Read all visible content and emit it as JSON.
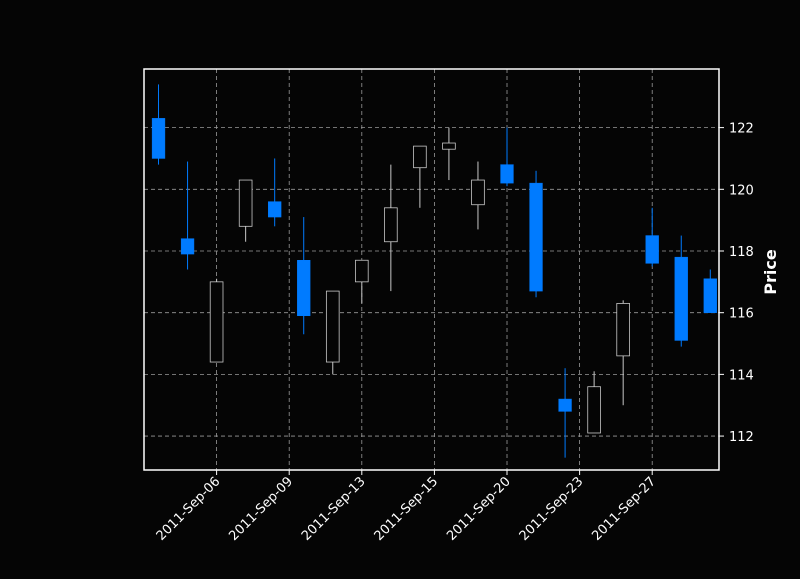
{
  "chart_data": {
    "type": "candlestick",
    "ylabel": "Price",
    "ylim": [
      110.9,
      123.9
    ],
    "y_ticks": [
      112,
      114,
      116,
      118,
      120,
      122
    ],
    "x_tick_labels": [
      "2011-Sep-06",
      "2011-Sep-09",
      "2011-Sep-13",
      "2011-Sep-15",
      "2011-Sep-20",
      "2011-Sep-23",
      "2011-Sep-27"
    ],
    "x_tick_indices": [
      2,
      4.5,
      7,
      9.5,
      12,
      14.5,
      17
    ],
    "grid": true,
    "colors": {
      "background": "#050505",
      "up": "#050505",
      "down": "#007bff",
      "edge": "#c8c8c8",
      "axis": "#ffffff",
      "grid": "#9a9a9a"
    },
    "candles": [
      {
        "open": 122.3,
        "high": 123.4,
        "low": 120.8,
        "close": 121.0
      },
      {
        "open": 118.4,
        "high": 120.9,
        "low": 117.4,
        "close": 117.9
      },
      {
        "open": 114.4,
        "high": 117.1,
        "low": 114.4,
        "close": 117.0
      },
      {
        "open": 118.8,
        "high": 120.3,
        "low": 118.3,
        "close": 120.3
      },
      {
        "open": 119.6,
        "high": 121.0,
        "low": 118.8,
        "close": 119.1
      },
      {
        "open": 117.7,
        "high": 119.1,
        "low": 115.3,
        "close": 115.9
      },
      {
        "open": 114.4,
        "high": 116.7,
        "low": 114.0,
        "close": 116.7
      },
      {
        "open": 117.0,
        "high": 117.7,
        "low": 116.3,
        "close": 117.7
      },
      {
        "open": 118.3,
        "high": 120.8,
        "low": 116.7,
        "close": 119.4
      },
      {
        "open": 120.7,
        "high": 121.4,
        "low": 119.4,
        "close": 121.4
      },
      {
        "open": 121.3,
        "high": 122.0,
        "low": 120.3,
        "close": 121.5
      },
      {
        "open": 119.5,
        "high": 120.9,
        "low": 118.7,
        "close": 120.3
      },
      {
        "open": 120.8,
        "high": 122.0,
        "low": 120.1,
        "close": 120.2
      },
      {
        "open": 120.2,
        "high": 120.6,
        "low": 116.5,
        "close": 116.7
      },
      {
        "open": 113.2,
        "high": 114.2,
        "low": 111.3,
        "close": 112.8
      },
      {
        "open": 112.1,
        "high": 114.1,
        "low": 112.1,
        "close": 113.6
      },
      {
        "open": 114.6,
        "high": 116.4,
        "low": 113.0,
        "close": 116.3
      },
      {
        "open": 118.5,
        "high": 119.4,
        "low": 117.5,
        "close": 117.6
      },
      {
        "open": 117.8,
        "high": 118.5,
        "low": 114.9,
        "close": 115.1
      },
      {
        "open": 117.1,
        "high": 117.4,
        "low": 116.0,
        "close": 116.0
      }
    ]
  }
}
